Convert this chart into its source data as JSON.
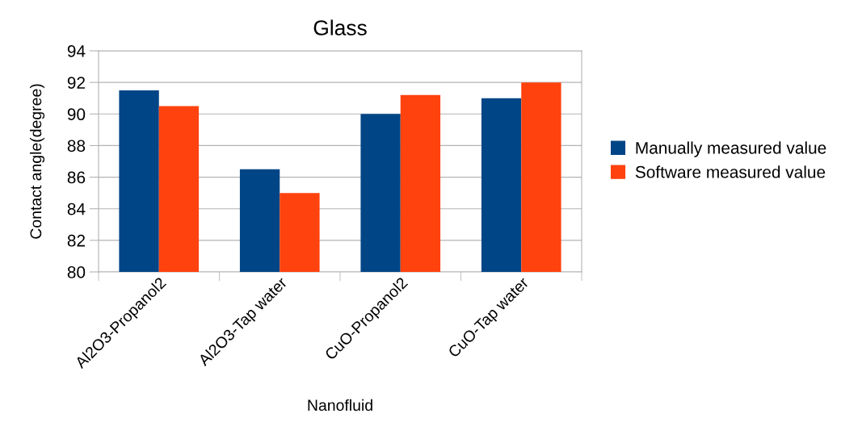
{
  "chart_data": {
    "type": "bar",
    "title": "Glass",
    "xlabel": "Nanofluid",
    "ylabel": "Contact angle(degree)",
    "categories": [
      "Al2O3-Propanol2",
      "Al2O3-Tap water",
      "CuO-Propanol2",
      "CuO-Tap water"
    ],
    "series": [
      {
        "name": "Manually measured value",
        "color": "#004586",
        "values": [
          91.5,
          86.5,
          90.0,
          91.0
        ]
      },
      {
        "name": "Software measured value",
        "color": "#ff420e",
        "values": [
          90.5,
          85.0,
          91.2,
          92.0
        ]
      }
    ],
    "ylim": [
      80,
      94
    ],
    "yticks": [
      80,
      82,
      84,
      86,
      88,
      90,
      92,
      94
    ],
    "grid": "y",
    "legend": "right"
  }
}
